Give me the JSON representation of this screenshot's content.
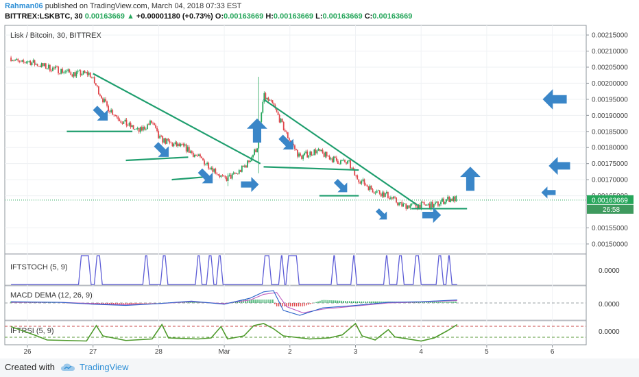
{
  "header": {
    "author": "Rahman06",
    "published_text": "published on TradingView.com, March 04, 2018 07:33 EST",
    "symbol": "BITTREX:LSKBTC, 30",
    "last": "0.00163669",
    "change_arrow": "▲",
    "change": "+0.00001180 (+0.73%)",
    "o_label": "O:",
    "o": "0.00163669",
    "h_label": "H:",
    "h": "0.00163669",
    "l_label": "L:",
    "l": "0.00163669",
    "c_label": "C:",
    "c": "0.00163669"
  },
  "footer": {
    "created_with": "Created with",
    "brand": "TradingView"
  },
  "colors": {
    "up": "#26a65b",
    "down": "#e0474c",
    "trend": "#1f9e6e",
    "arrow": "#3a86c8",
    "stoch": "#5c5cd6",
    "rsi": "#4e9a2b",
    "macd": "#2a62c9",
    "signal": "#c05ec0"
  },
  "chart_data": [
    {
      "type": "candlestick",
      "title": "Lisk / Bitcoin, 30, BITTREX",
      "ylim": [
        0.00147,
        0.00218
      ],
      "y_ticks": [
        "0.00215000",
        "0.00210000",
        "0.00205000",
        "0.00200000",
        "0.00195000",
        "0.00190000",
        "0.00185000",
        "0.00180000",
        "0.00175000",
        "0.00170000",
        "0.00165000",
        "0.00155000",
        "0.00150000"
      ],
      "y_tick_values": [
        0.00215,
        0.0021,
        0.00205,
        0.002,
        0.00195,
        0.0019,
        0.00185,
        0.0018,
        0.00175,
        0.0017,
        0.00165,
        0.00155,
        0.0015
      ],
      "price_label": "0.00163669",
      "price_value": 0.00163669,
      "timer_label": "26:58",
      "x_ticks": [
        "26",
        "27",
        "28",
        "Mar",
        "2",
        "3",
        "4",
        "5",
        "6"
      ],
      "x_tick_days": [
        0,
        1,
        2,
        3,
        4,
        5,
        6,
        7,
        8
      ],
      "close_path": [
        [
          -0.25,
          0.00208
        ],
        [
          -0.1,
          0.00206
        ],
        [
          0.0,
          0.00207
        ],
        [
          0.12,
          0.00206
        ],
        [
          0.3,
          0.00205
        ],
        [
          0.5,
          0.00204
        ],
        [
          0.7,
          0.00203
        ],
        [
          0.95,
          0.00203
        ],
        [
          1.05,
          0.00199
        ],
        [
          1.2,
          0.00193
        ],
        [
          1.45,
          0.00188
        ],
        [
          1.7,
          0.00185
        ],
        [
          1.9,
          0.00188
        ],
        [
          2.0,
          0.00183
        ],
        [
          2.2,
          0.00181
        ],
        [
          2.4,
          0.0018
        ],
        [
          2.6,
          0.00177
        ],
        [
          2.8,
          0.00174
        ],
        [
          3.0,
          0.0017
        ],
        [
          3.2,
          0.00172
        ],
        [
          3.35,
          0.00175
        ],
        [
          3.5,
          0.0018
        ],
        [
          3.6,
          0.00196
        ],
        [
          3.75,
          0.00193
        ],
        [
          3.95,
          0.00184
        ],
        [
          4.15,
          0.00177
        ],
        [
          4.4,
          0.00179
        ],
        [
          4.7,
          0.00176
        ],
        [
          4.9,
          0.00175
        ],
        [
          5.0,
          0.00171
        ],
        [
          5.25,
          0.00167
        ],
        [
          5.5,
          0.00165
        ],
        [
          5.7,
          0.00162
        ],
        [
          5.95,
          0.00162
        ],
        [
          6.2,
          0.00162
        ],
        [
          6.4,
          0.00164
        ],
        [
          6.55,
          0.00164
        ]
      ],
      "spikes": [
        {
          "day": 3.53,
          "high": 0.00202,
          "low": 0.00172
        },
        {
          "day": 3.05,
          "high": 0.00172,
          "low": 0.00168
        }
      ],
      "trendlines": [
        {
          "from": [
            1.0,
            0.00203
          ],
          "to": [
            3.55,
            0.00175
          ]
        },
        {
          "from": [
            0.6,
            0.00185
          ],
          "to": [
            1.6,
            0.00185
          ]
        },
        {
          "from": [
            1.5,
            0.00176
          ],
          "to": [
            2.45,
            0.00177
          ]
        },
        {
          "from": [
            2.2,
            0.0017
          ],
          "to": [
            2.8,
            0.00171
          ]
        },
        {
          "from": [
            3.6,
            0.00195
          ],
          "to": [
            5.95,
            0.00162
          ]
        },
        {
          "from": [
            3.6,
            0.00174
          ],
          "to": [
            5.05,
            0.00173
          ]
        },
        {
          "from": [
            4.45,
            0.00165
          ],
          "to": [
            5.05,
            0.00165
          ]
        },
        {
          "from": [
            5.85,
            0.00161
          ],
          "to": [
            6.7,
            0.00161
          ]
        }
      ],
      "arrows": [
        {
          "day": 1.12,
          "price": 0.001905,
          "dir": "down-right",
          "size": 1
        },
        {
          "day": 2.05,
          "price": 0.001792,
          "dir": "down-right",
          "size": 1
        },
        {
          "day": 2.72,
          "price": 0.00171,
          "dir": "down-right",
          "size": 1
        },
        {
          "day": 3.5,
          "price": 0.00185,
          "dir": "up",
          "size": 1.35
        },
        {
          "day": 3.38,
          "price": 0.001685,
          "dir": "right",
          "size": 1
        },
        {
          "day": 3.95,
          "price": 0.001815,
          "dir": "down-right",
          "size": 1
        },
        {
          "day": 4.78,
          "price": 0.00168,
          "dir": "down-right",
          "size": 0.9
        },
        {
          "day": 5.4,
          "price": 0.001592,
          "dir": "down-right",
          "size": 0.75
        },
        {
          "day": 6.15,
          "price": 0.00159,
          "dir": "right",
          "size": 1.05
        },
        {
          "day": 6.75,
          "price": 0.0017,
          "dir": "up",
          "size": 1.35
        },
        {
          "day": 8.05,
          "price": 0.00195,
          "dir": "left",
          "size": 1.35
        },
        {
          "day": 8.12,
          "price": 0.001743,
          "dir": "left",
          "size": 1.2
        },
        {
          "day": 7.95,
          "price": 0.00166,
          "dir": "left",
          "size": 0.8
        }
      ]
    },
    {
      "type": "line",
      "title": "IFTSTOCH (5, 9)",
      "value_label": "0.0000",
      "ylim": [
        -1,
        1
      ],
      "switch_days": [
        0.8,
        0.95,
        1.04,
        1.12,
        1.78,
        1.84,
        2.05,
        2.12,
        2.58,
        2.64,
        2.75,
        2.82,
        2.9,
        2.96,
        3.6,
        3.7,
        3.85,
        3.9,
        3.96,
        4.12,
        4.65,
        4.7,
        4.95,
        5.0,
        5.45,
        5.5,
        5.65,
        5.72,
        5.9,
        5.98,
        6.25,
        6.32,
        6.4,
        6.45
      ]
    },
    {
      "type": "line",
      "title": "MACD DEMA (12, 26, 9)",
      "value_label": "0.0000",
      "macd": [
        [
          -0.25,
          0.1
        ],
        [
          0.5,
          0.05
        ],
        [
          1.0,
          -0.1
        ],
        [
          1.5,
          -0.2
        ],
        [
          2.0,
          -0.05
        ],
        [
          2.5,
          0.15
        ],
        [
          3.0,
          -0.1
        ],
        [
          3.4,
          0.4
        ],
        [
          3.6,
          0.9
        ],
        [
          3.75,
          1.0
        ],
        [
          3.9,
          -0.6
        ],
        [
          4.15,
          -1.0
        ],
        [
          4.5,
          -0.4
        ],
        [
          5.0,
          -0.2
        ],
        [
          5.5,
          0.05
        ],
        [
          6.0,
          0.1
        ],
        [
          6.55,
          0.25
        ]
      ],
      "signal": [
        [
          -0.25,
          0.05
        ],
        [
          0.5,
          0.05
        ],
        [
          1.0,
          -0.05
        ],
        [
          1.5,
          -0.15
        ],
        [
          2.0,
          -0.05
        ],
        [
          2.5,
          0.1
        ],
        [
          3.0,
          -0.05
        ],
        [
          3.4,
          0.25
        ],
        [
          3.6,
          0.7
        ],
        [
          3.8,
          0.85
        ],
        [
          3.95,
          -0.3
        ],
        [
          4.2,
          -0.8
        ],
        [
          4.5,
          -0.5
        ],
        [
          5.0,
          -0.25
        ],
        [
          5.5,
          0.0
        ],
        [
          6.0,
          0.08
        ],
        [
          6.55,
          0.2
        ]
      ]
    },
    {
      "type": "line",
      "title": "IFTRSI (5, 9)",
      "value_label": "0.0000",
      "rsi": [
        [
          -0.25,
          0.6
        ],
        [
          0.1,
          -0.2
        ],
        [
          0.3,
          -0.7
        ],
        [
          0.9,
          -0.8
        ],
        [
          1.05,
          0.7
        ],
        [
          1.15,
          -0.3
        ],
        [
          1.5,
          -0.75
        ],
        [
          1.9,
          -0.6
        ],
        [
          2.05,
          0.8
        ],
        [
          2.15,
          -0.5
        ],
        [
          2.6,
          -0.6
        ],
        [
          2.8,
          -0.5
        ],
        [
          2.95,
          0.6
        ],
        [
          3.05,
          -0.6
        ],
        [
          3.3,
          -0.3
        ],
        [
          3.45,
          0.7
        ],
        [
          3.6,
          0.9
        ],
        [
          3.75,
          0.4
        ],
        [
          3.9,
          -0.3
        ],
        [
          4.3,
          -0.6
        ],
        [
          4.6,
          -0.5
        ],
        [
          4.8,
          -0.2
        ],
        [
          5.0,
          0.9
        ],
        [
          5.1,
          -0.3
        ],
        [
          5.3,
          -0.7
        ],
        [
          5.5,
          0.3
        ],
        [
          5.6,
          -0.4
        ],
        [
          6.0,
          -0.8
        ],
        [
          6.2,
          -0.5
        ],
        [
          6.4,
          0.2
        ],
        [
          6.55,
          0.8
        ]
      ]
    }
  ]
}
